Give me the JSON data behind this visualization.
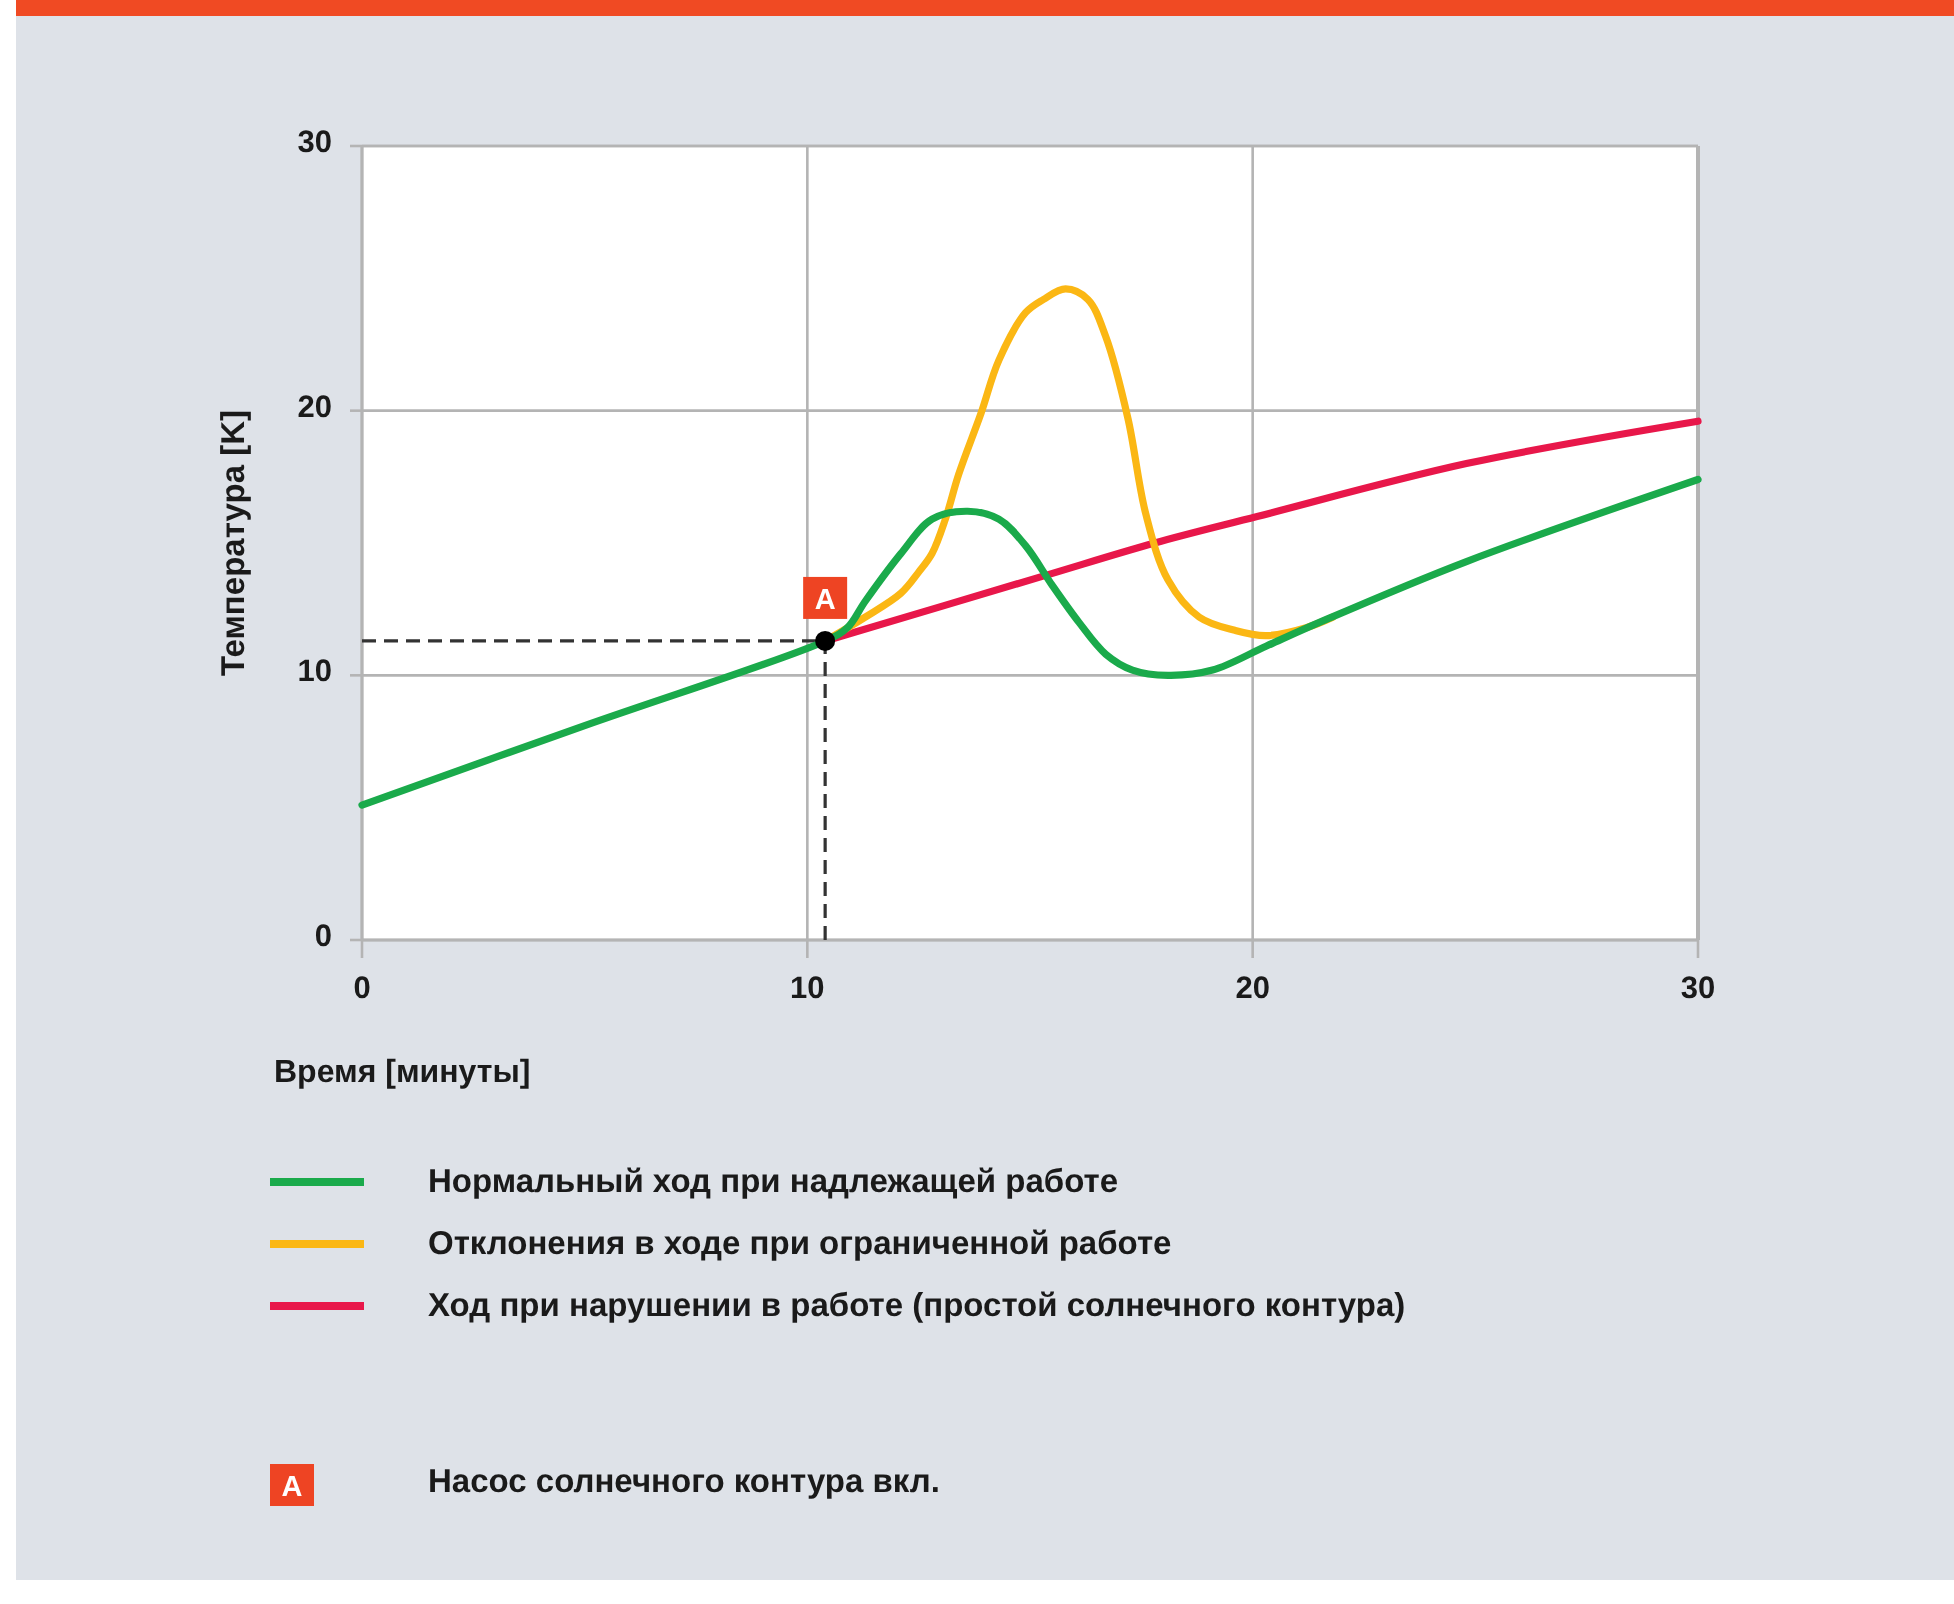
{
  "chart_data": {
    "type": "line",
    "xlabel": "Время [минуты]",
    "ylabel": "Температура [K]",
    "xlim": [
      0,
      30
    ],
    "ylim": [
      0,
      30
    ],
    "xticks": [
      0,
      10,
      20,
      30
    ],
    "yticks": [
      0,
      10,
      20,
      30
    ],
    "grid": true,
    "legend": "bottom",
    "series": [
      {
        "name": "Нормальный ход при надлежащей работе",
        "color": "#1aaa4b",
        "x": [
          0,
          5,
          10.4,
          10.9,
          11.3,
          12.1,
          12.8,
          13.6,
          14.3,
          14.9,
          15.5,
          16.1,
          16.7,
          17.3,
          18.1,
          19.1,
          20.3,
          21.5,
          24.8,
          30
        ],
        "values": [
          5.1,
          8.1,
          11.3,
          11.8,
          12.8,
          14.6,
          15.9,
          16.2,
          15.9,
          14.9,
          13.4,
          12.0,
          10.8,
          10.2,
          10.0,
          10.2,
          11.1,
          12.0,
          14.3,
          17.4
        ]
      },
      {
        "name": "Отклонения в ходе при ограниченной работе",
        "color": "#fbb714",
        "x": [
          10.4,
          11.3,
          12.1,
          12.5,
          12.8,
          13.1,
          13.4,
          13.9,
          14.3,
          14.9,
          15.3,
          15.8,
          16.3,
          16.7,
          17.2,
          17.6,
          18.1,
          18.8,
          19.6,
          20.3,
          21.2,
          21.8
        ],
        "values": [
          11.3,
          12.2,
          13.1,
          13.9,
          14.6,
          15.9,
          17.6,
          19.9,
          21.9,
          23.7,
          24.2,
          24.6,
          24.2,
          22.8,
          19.7,
          16.1,
          13.6,
          12.2,
          11.7,
          11.5,
          11.8,
          12.2
        ]
      },
      {
        "name": "Ход при нарушении в работе (простой солнечного контура)",
        "color": "#e8174a",
        "x": [
          10.4,
          15.2,
          17.8,
          20.1,
          24.8,
          30
        ],
        "values": [
          11.3,
          13.7,
          15.0,
          16.0,
          18.0,
          19.6
        ]
      },
      {
        "type": "scatter",
        "color": "#000000",
        "x": [
          10.4
        ],
        "values": [
          11.3
        ]
      }
    ],
    "ref_lines": [
      {
        "axis": "x",
        "value": 10.4,
        "color": "#333333",
        "line_style": "dashed"
      },
      {
        "axis": "y",
        "value": 11.3,
        "color": "#333333",
        "line_style": "dashed"
      }
    ],
    "annotations": [
      {
        "text": "A",
        "x": 10.4,
        "y": 11.3
      },
      "Насос солнечного контура вкл."
    ]
  }
}
